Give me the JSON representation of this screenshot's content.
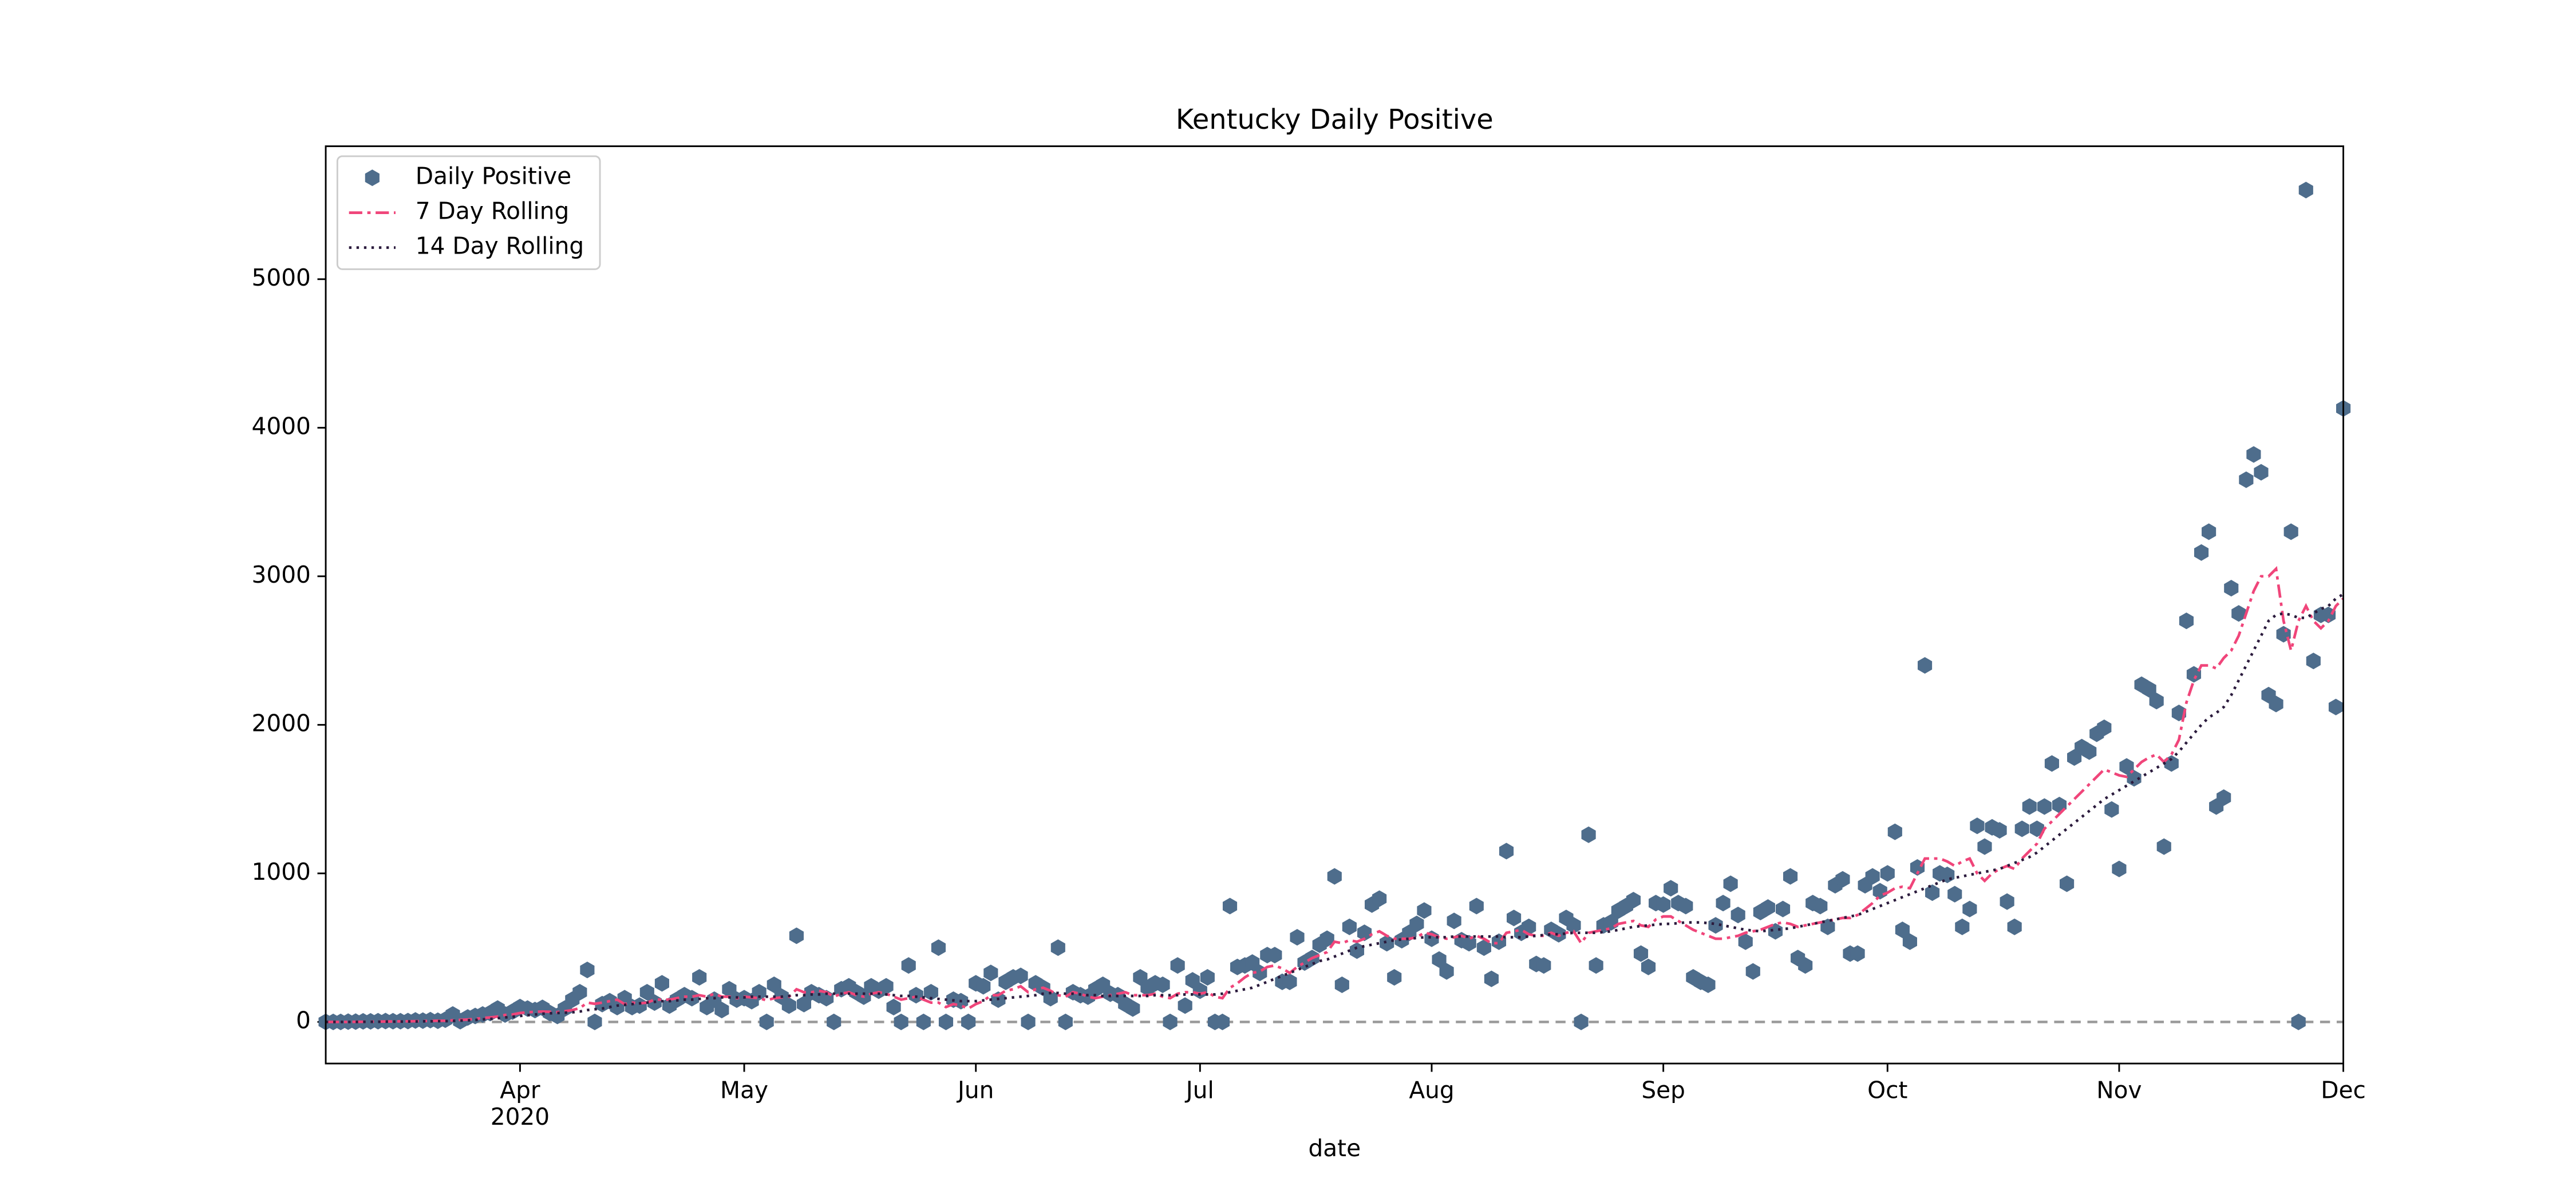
{
  "chart_data": {
    "type": "scatter-line",
    "title": "Kentucky Daily Positive",
    "x_label": "date",
    "xlim": [
      "2020-03-06",
      "2020-12-01"
    ],
    "ylim": [
      -280,
      5895
    ],
    "yticks": [
      0,
      1000,
      2000,
      3000,
      4000,
      5000
    ],
    "xticks": [
      {
        "value": "2020-04-01",
        "label": "Apr",
        "sublabel": "2020"
      },
      {
        "value": "2020-05-01",
        "label": "May"
      },
      {
        "value": "2020-06-01",
        "label": "Jun"
      },
      {
        "value": "2020-07-01",
        "label": "Jul"
      },
      {
        "value": "2020-08-01",
        "label": "Aug"
      },
      {
        "value": "2020-09-01",
        "label": "Sep"
      },
      {
        "value": "2020-10-01",
        "label": "Oct"
      },
      {
        "value": "2020-11-01",
        "label": "Nov"
      },
      {
        "value": "2020-12-01",
        "label": "Dec"
      }
    ],
    "hline": 0,
    "hline_color": "#999999",
    "legend": "upper left",
    "x": [
      "2020-03-06",
      "2020-03-07",
      "2020-03-08",
      "2020-03-09",
      "2020-03-10",
      "2020-03-11",
      "2020-03-12",
      "2020-03-13",
      "2020-03-14",
      "2020-03-15",
      "2020-03-16",
      "2020-03-17",
      "2020-03-18",
      "2020-03-19",
      "2020-03-20",
      "2020-03-21",
      "2020-03-22",
      "2020-03-23",
      "2020-03-24",
      "2020-03-25",
      "2020-03-26",
      "2020-03-27",
      "2020-03-28",
      "2020-03-29",
      "2020-03-30",
      "2020-03-31",
      "2020-04-01",
      "2020-04-02",
      "2020-04-03",
      "2020-04-04",
      "2020-04-05",
      "2020-04-06",
      "2020-04-07",
      "2020-04-08",
      "2020-04-09",
      "2020-04-10",
      "2020-04-11",
      "2020-04-12",
      "2020-04-13",
      "2020-04-14",
      "2020-04-15",
      "2020-04-16",
      "2020-04-17",
      "2020-04-18",
      "2020-04-19",
      "2020-04-20",
      "2020-04-21",
      "2020-04-22",
      "2020-04-23",
      "2020-04-24",
      "2020-04-25",
      "2020-04-26",
      "2020-04-27",
      "2020-04-28",
      "2020-04-29",
      "2020-04-30",
      "2020-05-01",
      "2020-05-02",
      "2020-05-03",
      "2020-05-04",
      "2020-05-05",
      "2020-05-06",
      "2020-05-07",
      "2020-05-08",
      "2020-05-09",
      "2020-05-10",
      "2020-05-11",
      "2020-05-12",
      "2020-05-13",
      "2020-05-14",
      "2020-05-15",
      "2020-05-16",
      "2020-05-17",
      "2020-05-18",
      "2020-05-19",
      "2020-05-20",
      "2020-05-21",
      "2020-05-22",
      "2020-05-23",
      "2020-05-24",
      "2020-05-25",
      "2020-05-26",
      "2020-05-27",
      "2020-05-28",
      "2020-05-29",
      "2020-05-30",
      "2020-05-31",
      "2020-06-01",
      "2020-06-02",
      "2020-06-03",
      "2020-06-04",
      "2020-06-05",
      "2020-06-06",
      "2020-06-07",
      "2020-06-08",
      "2020-06-09",
      "2020-06-10",
      "2020-06-11",
      "2020-06-12",
      "2020-06-13",
      "2020-06-14",
      "2020-06-15",
      "2020-06-16",
      "2020-06-17",
      "2020-06-18",
      "2020-06-19",
      "2020-06-20",
      "2020-06-21",
      "2020-06-22",
      "2020-06-23",
      "2020-06-24",
      "2020-06-25",
      "2020-06-26",
      "2020-06-27",
      "2020-06-28",
      "2020-06-29",
      "2020-06-30",
      "2020-07-01",
      "2020-07-02",
      "2020-07-03",
      "2020-07-04",
      "2020-07-05",
      "2020-07-06",
      "2020-07-07",
      "2020-07-08",
      "2020-07-09",
      "2020-07-10",
      "2020-07-11",
      "2020-07-12",
      "2020-07-13",
      "2020-07-14",
      "2020-07-15",
      "2020-07-16",
      "2020-07-17",
      "2020-07-18",
      "2020-07-19",
      "2020-07-20",
      "2020-07-21",
      "2020-07-22",
      "2020-07-23",
      "2020-07-24",
      "2020-07-25",
      "2020-07-26",
      "2020-07-27",
      "2020-07-28",
      "2020-07-29",
      "2020-07-30",
      "2020-07-31",
      "2020-08-01",
      "2020-08-02",
      "2020-08-03",
      "2020-08-04",
      "2020-08-05",
      "2020-08-06",
      "2020-08-07",
      "2020-08-08",
      "2020-08-09",
      "2020-08-10",
      "2020-08-11",
      "2020-08-12",
      "2020-08-13",
      "2020-08-14",
      "2020-08-15",
      "2020-08-16",
      "2020-08-17",
      "2020-08-18",
      "2020-08-19",
      "2020-08-20",
      "2020-08-21",
      "2020-08-22",
      "2020-08-23",
      "2020-08-24",
      "2020-08-25",
      "2020-08-26",
      "2020-08-27",
      "2020-08-28",
      "2020-08-29",
      "2020-08-30",
      "2020-08-31",
      "2020-09-01",
      "2020-09-02",
      "2020-09-03",
      "2020-09-04",
      "2020-09-05",
      "2020-09-06",
      "2020-09-07",
      "2020-09-08",
      "2020-09-09",
      "2020-09-10",
      "2020-09-11",
      "2020-09-12",
      "2020-09-13",
      "2020-09-14",
      "2020-09-15",
      "2020-09-16",
      "2020-09-17",
      "2020-09-18",
      "2020-09-19",
      "2020-09-20",
      "2020-09-21",
      "2020-09-22",
      "2020-09-23",
      "2020-09-24",
      "2020-09-25",
      "2020-09-26",
      "2020-09-27",
      "2020-09-28",
      "2020-09-29",
      "2020-09-30",
      "2020-10-01",
      "2020-10-02",
      "2020-10-03",
      "2020-10-04",
      "2020-10-05",
      "2020-10-06",
      "2020-10-07",
      "2020-10-08",
      "2020-10-09",
      "2020-10-10",
      "2020-10-11",
      "2020-10-12",
      "2020-10-13",
      "2020-10-14",
      "2020-10-15",
      "2020-10-16",
      "2020-10-17",
      "2020-10-18",
      "2020-10-19",
      "2020-10-20",
      "2020-10-21",
      "2020-10-22",
      "2020-10-23",
      "2020-10-24",
      "2020-10-25",
      "2020-10-26",
      "2020-10-27",
      "2020-10-28",
      "2020-10-29",
      "2020-10-30",
      "2020-10-31",
      "2020-11-01",
      "2020-11-02",
      "2020-11-03",
      "2020-11-04",
      "2020-11-05",
      "2020-11-06",
      "2020-11-07",
      "2020-11-08",
      "2020-11-09",
      "2020-11-10",
      "2020-11-11",
      "2020-11-12",
      "2020-11-13",
      "2020-11-14",
      "2020-11-15",
      "2020-11-16",
      "2020-11-17",
      "2020-11-18",
      "2020-11-19",
      "2020-11-20",
      "2020-11-21",
      "2020-11-22",
      "2020-11-23",
      "2020-11-24",
      "2020-11-25",
      "2020-11-26",
      "2020-11-27",
      "2020-11-28",
      "2020-11-29",
      "2020-11-30",
      "2020-12-01"
    ],
    "series": [
      {
        "name": "Daily Positive",
        "color": "#4e6d8c",
        "marker": "hexagon",
        "values": [
          0,
          0,
          0,
          2,
          2,
          4,
          4,
          5,
          6,
          5,
          5,
          6,
          10,
          9,
          12,
          8,
          15,
          50,
          5,
          30,
          40,
          50,
          60,
          90,
          50,
          70,
          100,
          90,
          80,
          95,
          60,
          40,
          90,
          150,
          200,
          350,
          0,
          120,
          140,
          100,
          160,
          100,
          110,
          200,
          130,
          260,
          110,
          150,
          180,
          160,
          300,
          100,
          150,
          80,
          220,
          150,
          160,
          140,
          200,
          0,
          250,
          170,
          110,
          580,
          120,
          200,
          180,
          160,
          0,
          220,
          240,
          200,
          170,
          240,
          210,
          240,
          100,
          0,
          380,
          180,
          0,
          200,
          500,
          0,
          150,
          140,
          0,
          260,
          240,
          330,
          150,
          270,
          300,
          310,
          0,
          260,
          230,
          160,
          500,
          0,
          200,
          180,
          170,
          220,
          250,
          190,
          180,
          120,
          90,
          300,
          230,
          260,
          250,
          0,
          380,
          110,
          280,
          210,
          300,
          0,
          0,
          780,
          370,
          380,
          400,
          330,
          450,
          450,
          270,
          270,
          570,
          400,
          430,
          520,
          560,
          980,
          250,
          640,
          480,
          600,
          790,
          830,
          530,
          300,
          550,
          600,
          660,
          750,
          560,
          420,
          340,
          680,
          550,
          530,
          780,
          500,
          290,
          540,
          1150,
          700,
          600,
          640,
          390,
          380,
          620,
          590,
          700,
          650,
          0,
          1260,
          380,
          650,
          670,
          750,
          780,
          820,
          460,
          370,
          800,
          790,
          900,
          800,
          780,
          300,
          270,
          250,
          650,
          800,
          930,
          720,
          540,
          340,
          740,
          770,
          610,
          760,
          980,
          430,
          380,
          800,
          780,
          640,
          920,
          960,
          460,
          460,
          920,
          980,
          880,
          1000,
          1280,
          620,
          540,
          1040,
          2400,
          870,
          1000,
          990,
          860,
          640,
          760,
          1320,
          1180,
          1310,
          1290,
          810,
          640,
          1300,
          1450,
          1300,
          1450,
          1740,
          1460,
          930,
          1780,
          1850,
          1820,
          1940,
          1980,
          1430,
          1030,
          1720,
          1640,
          2270,
          2240,
          2160,
          1180,
          1740,
          2080,
          2700,
          2340,
          3160,
          3300,
          1450,
          1510,
          2920,
          2750,
          3650,
          3820,
          3700,
          2200,
          2140,
          2610,
          3300,
          0,
          5600,
          2430,
          2740,
          2740,
          2120,
          4130
        ]
      },
      {
        "name": "7 Day Rolling",
        "color": "#f0457a",
        "linestyle": "dashdot",
        "values": [
          0,
          0,
          0,
          0,
          1,
          1,
          2,
          2,
          3,
          3,
          4,
          4,
          5,
          6,
          7,
          8,
          8,
          11,
          14,
          16,
          20,
          27,
          30,
          36,
          47,
          50,
          60,
          65,
          68,
          70,
          68,
          66,
          72,
          80,
          93,
          130,
          122,
          130,
          140,
          150,
          120,
          130,
          125,
          130,
          150,
          150,
          150,
          160,
          170,
          170,
          180,
          170,
          190,
          170,
          170,
          160,
          170,
          165,
          160,
          145,
          160,
          165,
          170,
          220,
          200,
          200,
          210,
          200,
          170,
          190,
          200,
          180,
          170,
          190,
          200,
          190,
          170,
          150,
          160,
          170,
          150,
          130,
          130,
          100,
          120,
          110,
          90,
          120,
          140,
          180,
          180,
          210,
          220,
          240,
          200,
          220,
          230,
          210,
          180,
          170,
          200,
          190,
          170,
          160,
          170,
          180,
          190,
          200,
          180,
          180,
          180,
          190,
          170,
          160,
          190,
          200,
          200,
          190,
          200,
          170,
          160,
          230,
          260,
          300,
          330,
          340,
          370,
          380,
          360,
          330,
          370,
          400,
          430,
          450,
          470,
          540,
          530,
          550,
          540,
          560,
          590,
          610,
          580,
          560,
          560,
          560,
          570,
          600,
          590,
          570,
          560,
          570,
          580,
          560,
          580,
          560,
          530,
          530,
          600,
          610,
          620,
          590,
          580,
          580,
          600,
          580,
          600,
          610,
          530,
          600,
          610,
          620,
          630,
          660,
          670,
          680,
          650,
          640,
          690,
          710,
          710,
          680,
          650,
          620,
          600,
          580,
          560,
          560,
          570,
          580,
          600,
          610,
          620,
          640,
          660,
          670,
          660,
          640,
          650,
          660,
          670,
          680,
          690,
          700,
          700,
          720,
          760,
          800,
          850,
          870,
          900,
          910,
          900,
          1000,
          1100,
          1100,
          1100,
          1080,
          1050,
          1080,
          1100,
          1000,
          950,
          1000,
          1030,
          1050,
          1030,
          1100,
          1150,
          1200,
          1300,
          1350,
          1400,
          1450,
          1500,
          1550,
          1600,
          1650,
          1700,
          1680,
          1660,
          1650,
          1700,
          1750,
          1780,
          1800,
          1750,
          1800,
          1900,
          2150,
          2300,
          2400,
          2400,
          2380,
          2450,
          2500,
          2600,
          2750,
          2900,
          3000,
          3000,
          3050,
          2700,
          2500,
          2700,
          2800,
          2700,
          2650,
          2700,
          2800,
          2850
        ]
      },
      {
        "name": "14 Day Rolling",
        "color": "#2b1b3d",
        "linestyle": "dotted",
        "values": [
          0,
          0,
          0,
          0,
          0,
          1,
          1,
          1,
          2,
          2,
          2,
          3,
          3,
          4,
          4,
          5,
          5,
          7,
          9,
          11,
          13,
          17,
          20,
          25,
          30,
          35,
          40,
          45,
          50,
          55,
          58,
          60,
          62,
          65,
          70,
          80,
          85,
          90,
          100,
          110,
          115,
          120,
          125,
          130,
          135,
          140,
          140,
          145,
          150,
          150,
          155,
          160,
          160,
          165,
          165,
          165,
          165,
          170,
          170,
          170,
          170,
          170,
          175,
          180,
          180,
          185,
          185,
          190,
          190,
          190,
          190,
          190,
          190,
          190,
          190,
          185,
          180,
          175,
          175,
          170,
          165,
          160,
          155,
          150,
          145,
          140,
          140,
          140,
          145,
          150,
          155,
          160,
          165,
          170,
          175,
          180,
          190,
          195,
          195,
          190,
          190,
          185,
          180,
          180,
          175,
          175,
          175,
          175,
          175,
          175,
          175,
          180,
          180,
          180,
          180,
          185,
          185,
          185,
          185,
          185,
          190,
          200,
          210,
          220,
          230,
          250,
          270,
          290,
          310,
          330,
          350,
          370,
          390,
          410,
          420,
          440,
          460,
          480,
          500,
          510,
          520,
          530,
          540,
          550,
          555,
          560,
          565,
          570,
          570,
          570,
          570,
          575,
          575,
          575,
          575,
          575,
          575,
          575,
          570,
          570,
          570,
          575,
          580,
          585,
          590,
          590,
          595,
          600,
          600,
          600,
          600,
          605,
          610,
          620,
          630,
          640,
          645,
          650,
          655,
          660,
          660,
          665,
          670,
          670,
          670,
          665,
          660,
          650,
          640,
          630,
          620,
          615,
          610,
          615,
          620,
          625,
          630,
          640,
          650,
          660,
          670,
          680,
          690,
          700,
          710,
          720,
          740,
          760,
          780,
          800,
          820,
          840,
          860,
          880,
          900,
          920,
          940,
          960,
          970,
          980,
          990,
          1000,
          1010,
          1020,
          1030,
          1050,
          1070,
          1090,
          1110,
          1140,
          1180,
          1220,
          1260,
          1300,
          1340,
          1380,
          1420,
          1460,
          1500,
          1530,
          1560,
          1590,
          1620,
          1650,
          1680,
          1710,
          1740,
          1770,
          1820,
          1880,
          1940,
          2000,
          2050,
          2080,
          2120,
          2200,
          2300,
          2400,
          2500,
          2600,
          2700,
          2740,
          2750,
          2740,
          2720,
          2720,
          2750,
          2780,
          2800,
          2850,
          2880
        ]
      }
    ]
  }
}
